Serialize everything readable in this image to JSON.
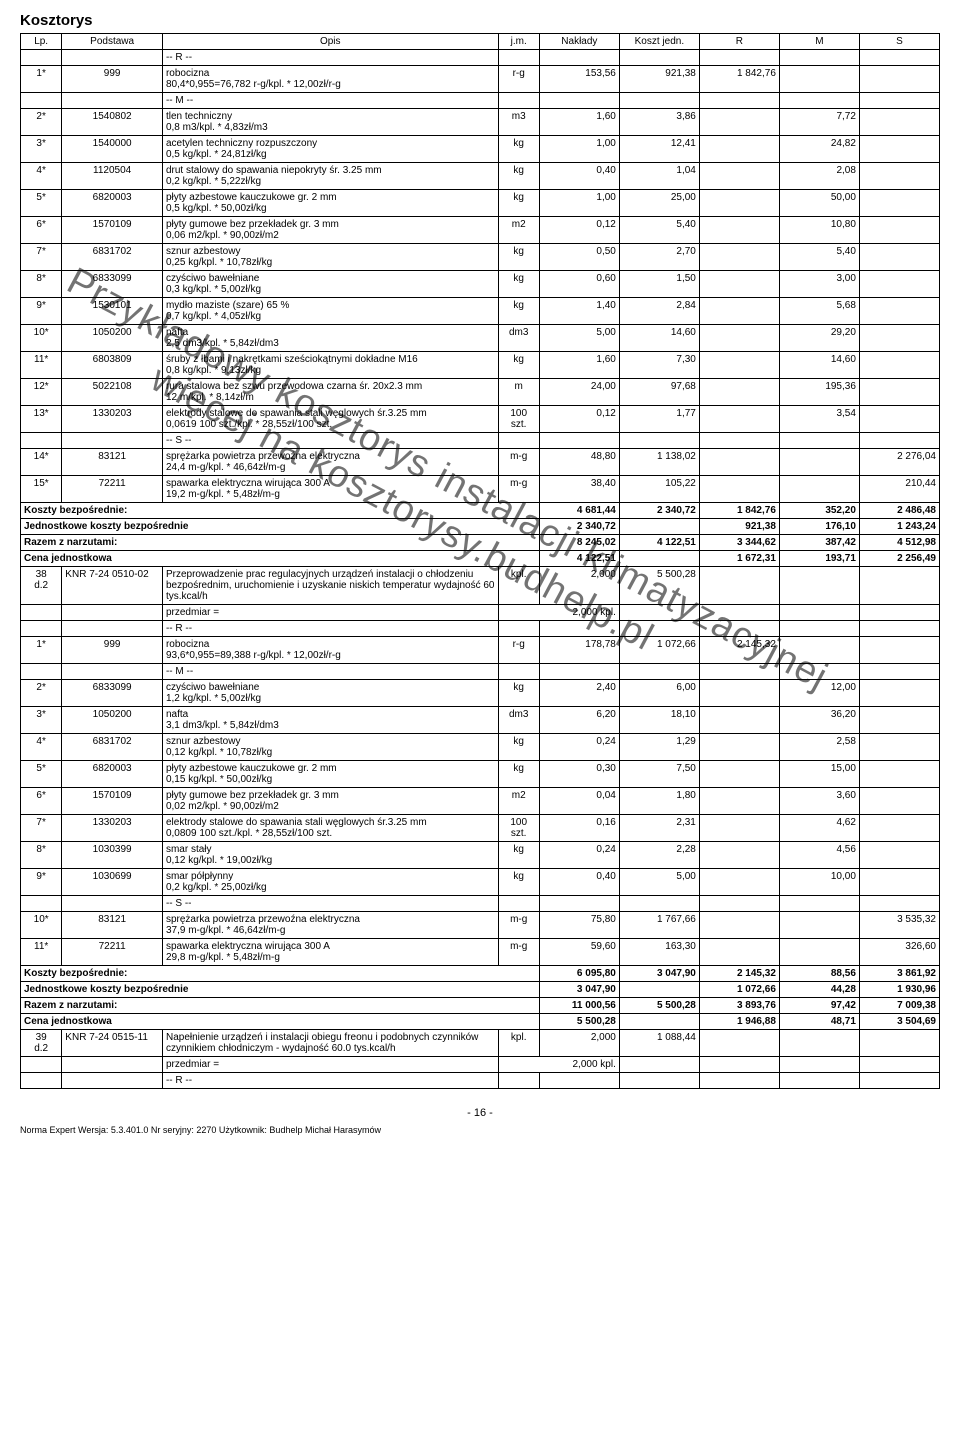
{
  "title": "Kosztorys",
  "watermark_lines": [
    "Przykładowy kosztorys instalacji klimatyzacyjnej",
    "więcej na kosztorysy.budhelp.pl"
  ],
  "columns": [
    "Lp.",
    "Podstawa",
    "Opis",
    "j.m.",
    "Nakłady",
    "Koszt jedn.",
    "R",
    "M",
    "S"
  ],
  "blocks": [
    {
      "lead": {
        "lp": "1*",
        "pod": "999",
        "opis": "robocizna\n80,4*0,955=76,782 r-g/kpl. * 12,00zł/r-g",
        "jm": "r-g",
        "nak": "153,56",
        "kj": "921,38",
        "r": "1 842,76",
        "m": "",
        "s": ""
      },
      "pre_sep": "-- R --",
      "post_sep": "-- M --"
    },
    {
      "pre_sep": null,
      "lead": {
        "lp": "2*",
        "pod": "1540802",
        "opis": "tlen techniczny\n0,8 m3/kpl. * 4,83zł/m3",
        "jm": "m3",
        "nak": "1,60",
        "kj": "3,86",
        "r": "",
        "m": "7,72",
        "s": ""
      }
    },
    {
      "lead": {
        "lp": "3*",
        "pod": "1540000",
        "opis": "acetylen techniczny rozpuszczony\n0,5 kg/kpl. * 24,81zł/kg",
        "jm": "kg",
        "nak": "1,00",
        "kj": "12,41",
        "r": "",
        "m": "24,82",
        "s": ""
      }
    },
    {
      "lead": {
        "lp": "4*",
        "pod": "1120504",
        "opis": "drut stalowy do spawania niepokryty śr. 3.25 mm\n0,2 kg/kpl. * 5,22zł/kg",
        "jm": "kg",
        "nak": "0,40",
        "kj": "1,04",
        "r": "",
        "m": "2,08",
        "s": ""
      }
    },
    {
      "lead": {
        "lp": "5*",
        "pod": "6820003",
        "opis": "płyty azbestowe kauczukowe gr. 2 mm\n0,5 kg/kpl. * 50,00zł/kg",
        "jm": "kg",
        "nak": "1,00",
        "kj": "25,00",
        "r": "",
        "m": "50,00",
        "s": ""
      }
    },
    {
      "lead": {
        "lp": "6*",
        "pod": "1570109",
        "opis": "płyty gumowe bez przekładek gr. 3 mm\n0,06 m2/kpl. * 90,00zł/m2",
        "jm": "m2",
        "nak": "0,12",
        "kj": "5,40",
        "r": "",
        "m": "10,80",
        "s": ""
      }
    },
    {
      "lead": {
        "lp": "7*",
        "pod": "6831702",
        "opis": "sznur azbestowy\n0,25 kg/kpl. * 10,78zł/kg",
        "jm": "kg",
        "nak": "0,50",
        "kj": "2,70",
        "r": "",
        "m": "5,40",
        "s": ""
      }
    },
    {
      "lead": {
        "lp": "8*",
        "pod": "6833099",
        "opis": "czyściwo bawełniane\n0,3 kg/kpl. * 5,00zł/kg",
        "jm": "kg",
        "nak": "0,60",
        "kj": "1,50",
        "r": "",
        "m": "3,00",
        "s": ""
      }
    },
    {
      "lead": {
        "lp": "9*",
        "pod": "1530101",
        "opis": "mydło maziste (szare) 65 %\n0,7 kg/kpl. * 4,05zł/kg",
        "jm": "kg",
        "nak": "1,40",
        "kj": "2,84",
        "r": "",
        "m": "5,68",
        "s": ""
      }
    },
    {
      "lead": {
        "lp": "10*",
        "pod": "1050200",
        "opis": "nafta\n2,5 dm3/kpl. * 5,84zł/dm3",
        "jm": "dm3",
        "nak": "5,00",
        "kj": "14,60",
        "r": "",
        "m": "29,20",
        "s": ""
      }
    },
    {
      "lead": {
        "lp": "11*",
        "pod": "6803809",
        "opis": "śruby z łbami i nakrętkami sześciokątnymi dokładne M16\n0,8 kg/kpl. * 9,13zł/kg",
        "jm": "kg",
        "nak": "1,60",
        "kj": "7,30",
        "r": "",
        "m": "14,60",
        "s": ""
      }
    },
    {
      "lead": {
        "lp": "12*",
        "pod": "5022108",
        "opis": "rura stalowa bez szwu przewodowa czarna śr. 20x2.3 mm\n12 m/kpl. * 8,14zł/m",
        "jm": "m",
        "nak": "24,00",
        "kj": "97,68",
        "r": "",
        "m": "195,36",
        "s": ""
      }
    },
    {
      "lead": {
        "lp": "13*",
        "pod": "1330203",
        "opis": "elektrody stalowe do spawania stali węglowych śr.3.25 mm\n0,0619 100 szt./kpl. * 28,55zł/100 szt.",
        "jm": "100\nszt.",
        "nak": "0,12",
        "kj": "1,77",
        "r": "",
        "m": "3,54",
        "s": ""
      },
      "post_sep": "-- S --"
    },
    {
      "lead": {
        "lp": "14*",
        "pod": "83121",
        "opis": "sprężarka powietrza przewoźna elektryczna\n24,4 m-g/kpl. * 46,64zł/m-g",
        "jm": "m-g",
        "nak": "48,80",
        "kj": "1 138,02",
        "r": "",
        "m": "",
        "s": "2 276,04"
      }
    },
    {
      "lead": {
        "lp": "15*",
        "pod": "72211",
        "opis": "spawarka elektryczna wirująca 300 A\n19,2 m-g/kpl. * 5,48zł/m-g",
        "jm": "m-g",
        "nak": "38,40",
        "kj": "105,22",
        "r": "",
        "m": "",
        "s": "210,44"
      }
    }
  ],
  "summaries1": [
    {
      "label": "Koszty bezpośrednie:",
      "nak": "4 681,44",
      "kj": "2 340,72",
      "r": "1 842,76",
      "m": "352,20",
      "s": "2 486,48"
    },
    {
      "label": "Jednostkowe koszty bezpośrednie",
      "nak": "2 340,72",
      "kj": "",
      "r": "921,38",
      "m": "176,10",
      "s": "1 243,24"
    },
    {
      "label": "Razem z narzutami:",
      "nak": "8 245,02",
      "kj": "4 122,51",
      "r": "3 344,62",
      "m": "387,42",
      "s": "4 512,98"
    },
    {
      "label": "Cena jednostkowa",
      "nak": "4 122,51",
      "kj": "",
      "r": "1 672,31",
      "m": "193,71",
      "s": "2 256,49"
    }
  ],
  "item38": {
    "lp": "38\nd.2",
    "pod": "KNR 7-24 0510-02",
    "opis": "Przeprowadzenie prac regulacyjnych urządzeń instalacji o chłodzeniu bezpośrednim, uruchomienie i uzyskanie niskich temperatur wydajność 60 tys.kcal/h",
    "jm": "kpl.",
    "nak": "2,000",
    "kj": "5 500,28",
    "przedmiar": "przedmiar =",
    "przedmiar_val": "2,000 kpl."
  },
  "blocks2": [
    {
      "pre_sep": "-- R --",
      "lead": {
        "lp": "1*",
        "pod": "999",
        "opis": "robocizna\n93,6*0,955=89,388 r-g/kpl. * 12,00zł/r-g",
        "jm": "r-g",
        "nak": "178,78",
        "kj": "1 072,66",
        "r": "2 145,32",
        "m": "",
        "s": ""
      },
      "post_sep": "-- M --"
    },
    {
      "lead": {
        "lp": "2*",
        "pod": "6833099",
        "opis": "czyściwo bawełniane\n1,2 kg/kpl. * 5,00zł/kg",
        "jm": "kg",
        "nak": "2,40",
        "kj": "6,00",
        "r": "",
        "m": "12,00",
        "s": ""
      }
    },
    {
      "lead": {
        "lp": "3*",
        "pod": "1050200",
        "opis": "nafta\n3,1 dm3/kpl. * 5,84zł/dm3",
        "jm": "dm3",
        "nak": "6,20",
        "kj": "18,10",
        "r": "",
        "m": "36,20",
        "s": ""
      }
    },
    {
      "lead": {
        "lp": "4*",
        "pod": "6831702",
        "opis": "sznur azbestowy\n0,12 kg/kpl. * 10,78zł/kg",
        "jm": "kg",
        "nak": "0,24",
        "kj": "1,29",
        "r": "",
        "m": "2,58",
        "s": ""
      }
    },
    {
      "lead": {
        "lp": "5*",
        "pod": "6820003",
        "opis": "płyty azbestowe kauczukowe gr. 2 mm\n0,15 kg/kpl. * 50,00zł/kg",
        "jm": "kg",
        "nak": "0,30",
        "kj": "7,50",
        "r": "",
        "m": "15,00",
        "s": ""
      }
    },
    {
      "lead": {
        "lp": "6*",
        "pod": "1570109",
        "opis": "płyty gumowe bez przekładek gr. 3 mm\n0,02 m2/kpl. * 90,00zł/m2",
        "jm": "m2",
        "nak": "0,04",
        "kj": "1,80",
        "r": "",
        "m": "3,60",
        "s": ""
      }
    },
    {
      "lead": {
        "lp": "7*",
        "pod": "1330203",
        "opis": "elektrody stalowe do spawania stali węglowych śr.3.25 mm\n0,0809 100 szt./kpl. * 28,55zł/100 szt.",
        "jm": "100\nszt.",
        "nak": "0,16",
        "kj": "2,31",
        "r": "",
        "m": "4,62",
        "s": ""
      }
    },
    {
      "lead": {
        "lp": "8*",
        "pod": "1030399",
        "opis": "smar stały\n0,12 kg/kpl. * 19,00zł/kg",
        "jm": "kg",
        "nak": "0,24",
        "kj": "2,28",
        "r": "",
        "m": "4,56",
        "s": ""
      }
    },
    {
      "lead": {
        "lp": "9*",
        "pod": "1030699",
        "opis": "smar półpłynny\n0,2 kg/kpl. * 25,00zł/kg",
        "jm": "kg",
        "nak": "0,40",
        "kj": "5,00",
        "r": "",
        "m": "10,00",
        "s": ""
      },
      "post_sep": "-- S --"
    },
    {
      "lead": {
        "lp": "10*",
        "pod": "83121",
        "opis": "sprężarka powietrza przewoźna elektryczna\n37,9 m-g/kpl. * 46,64zł/m-g",
        "jm": "m-g",
        "nak": "75,80",
        "kj": "1 767,66",
        "r": "",
        "m": "",
        "s": "3 535,32"
      }
    },
    {
      "lead": {
        "lp": "11*",
        "pod": "72211",
        "opis": "spawarka elektryczna wirująca 300 A\n29,8 m-g/kpl. * 5,48zł/m-g",
        "jm": "m-g",
        "nak": "59,60",
        "kj": "163,30",
        "r": "",
        "m": "",
        "s": "326,60"
      }
    }
  ],
  "summaries2": [
    {
      "label": "Koszty bezpośrednie:",
      "nak": "6 095,80",
      "kj": "3 047,90",
      "r": "2 145,32",
      "m": "88,56",
      "s": "3 861,92"
    },
    {
      "label": "Jednostkowe koszty bezpośrednie",
      "nak": "3 047,90",
      "kj": "",
      "r": "1 072,66",
      "m": "44,28",
      "s": "1 930,96"
    },
    {
      "label": "Razem z narzutami:",
      "nak": "11 000,56",
      "kj": "5 500,28",
      "r": "3 893,76",
      "m": "97,42",
      "s": "7 009,38"
    },
    {
      "label": "Cena jednostkowa",
      "nak": "5 500,28",
      "kj": "",
      "r": "1 946,88",
      "m": "48,71",
      "s": "3 504,69"
    }
  ],
  "item39": {
    "lp": "39\nd.2",
    "pod": "KNR 7-24 0515-11",
    "opis": "Napełnienie urządzeń i instalacji obiegu freonu i podobnych czynników czynnikiem chłodniczym - wydajność 60.0 tys.kcal/h",
    "jm": "kpl.",
    "nak": "2,000",
    "kj": "1 088,44",
    "przedmiar": "przedmiar =",
    "przedmiar_val": "2,000 kpl.",
    "post_sep": "-- R --"
  },
  "page_number": "- 16 -",
  "norma": "Norma Expert  Wersja: 5.3.401.0  Nr seryjny: 2270  Użytkownik: Budhelp Michał Harasymów"
}
